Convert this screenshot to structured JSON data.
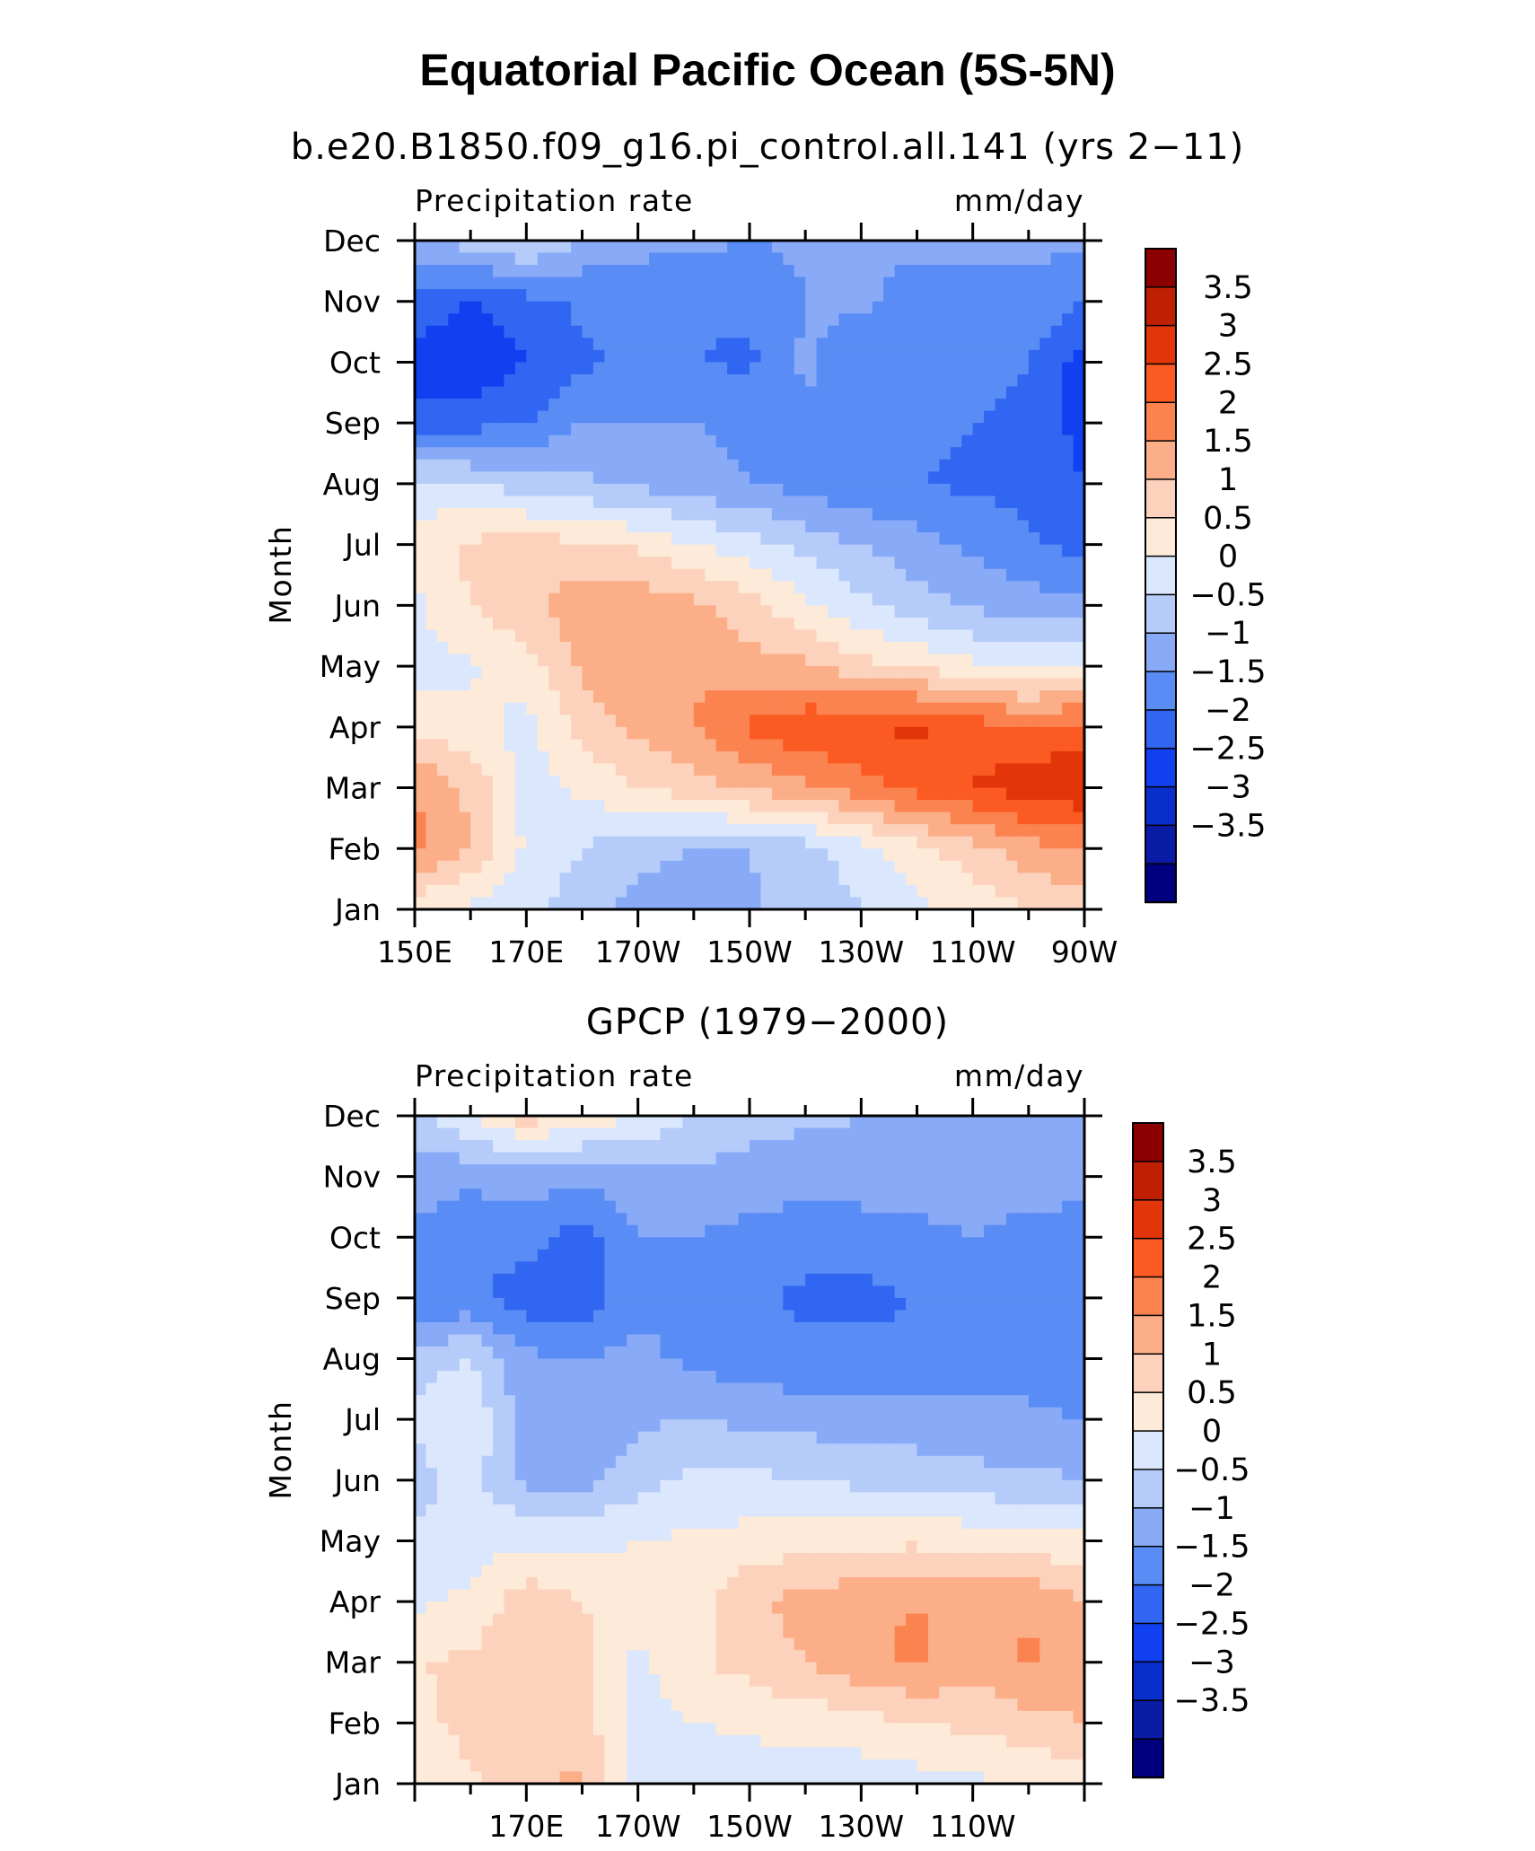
{
  "figure_title": "Equatorial Pacific Ocean (5S-5N)",
  "chart_data": [
    {
      "type": "heatmap",
      "title": "b.e20.B1850.f09_g16.pi_control.all.141 (yrs 2−11)",
      "left_label": "Precipitation rate",
      "right_label": "mm/day",
      "ylabel": "Month",
      "months": [
        "Jan",
        "Feb",
        "Mar",
        "Apr",
        "May",
        "Jun",
        "Jul",
        "Aug",
        "Sep",
        "Oct",
        "Nov",
        "Dec"
      ],
      "x_ticks": [
        "150E",
        "170E",
        "170W",
        "150W",
        "130W",
        "110W",
        "90W"
      ],
      "x_label_lon": [
        150,
        170,
        190,
        210,
        230,
        250,
        270
      ],
      "xlim_lon": [
        150,
        270
      ],
      "colorbar_levels": [
        "3.5",
        "3",
        "2.5",
        "2",
        "1.5",
        "1",
        "0.5",
        "0",
        "−0.5",
        "−1",
        "−1.5",
        "−2",
        "−2.5",
        "−3",
        "−3.5"
      ],
      "lons": [
        150,
        160,
        170,
        180,
        190,
        200,
        210,
        220,
        230,
        240,
        250,
        260,
        270
      ],
      "values": [
        [
          0.6,
          0.4,
          0.2,
          -0.3,
          -0.7,
          -0.8,
          -0.6,
          -0.3,
          0.0,
          0.4,
          0.7,
          1.0,
          1.3
        ],
        [
          2.2,
          1.5,
          0.4,
          0.0,
          -0.3,
          -0.5,
          -0.5,
          -0.2,
          0.3,
          0.8,
          1.3,
          1.8,
          2.0
        ],
        [
          2.0,
          1.4,
          0.3,
          0.6,
          1.0,
          1.3,
          1.6,
          1.9,
          2.3,
          2.7,
          3.0,
          3.3,
          3.5
        ],
        [
          0.8,
          0.7,
          0.3,
          1.2,
          1.6,
          2.0,
          2.6,
          2.9,
          3.0,
          3.1,
          2.8,
          2.5,
          2.7
        ],
        [
          0.3,
          0.4,
          0.8,
          1.6,
          1.9,
          1.9,
          1.7,
          1.6,
          1.2,
          0.9,
          0.6,
          0.4,
          0.6
        ],
        [
          0.4,
          1.0,
          1.4,
          1.8,
          1.8,
          1.6,
          1.2,
          0.6,
          0.1,
          -0.3,
          -0.6,
          -0.8,
          -0.8
        ],
        [
          0.7,
          1.1,
          1.2,
          1.1,
          0.9,
          0.5,
          0.2,
          -0.2,
          -0.5,
          -0.8,
          -1.1,
          -1.4,
          -1.7
        ],
        [
          0.2,
          0.0,
          -0.2,
          -0.4,
          -0.6,
          -0.8,
          -1.0,
          -1.2,
          -1.4,
          -1.5,
          -1.6,
          -1.7,
          -2.0
        ],
        [
          -1.7,
          -1.7,
          -1.5,
          -1.0,
          -1.0,
          -1.0,
          -1.1,
          -1.1,
          -1.3,
          -1.4,
          -1.5,
          -1.6,
          -2.2
        ],
        [
          -2.3,
          -2.4,
          -2.0,
          -1.6,
          -1.4,
          -1.5,
          -1.6,
          -0.9,
          -1.3,
          -1.4,
          -1.4,
          -1.5,
          -2.3
        ],
        [
          -1.6,
          -2.0,
          -1.7,
          -1.4,
          -1.4,
          -1.4,
          -1.4,
          -1.0,
          -0.9,
          -1.2,
          -1.2,
          -1.1,
          -1.5
        ],
        [
          -0.6,
          -0.3,
          0.2,
          -0.6,
          -0.8,
          -0.9,
          -1.0,
          -0.9,
          -0.9,
          -0.9,
          -0.9,
          -0.9,
          -0.9
        ]
      ]
    },
    {
      "type": "heatmap",
      "title": "GPCP (1979−2000)",
      "left_label": "Precipitation rate",
      "right_label": "mm/day",
      "ylabel": "Month",
      "months": [
        "Jan",
        "Feb",
        "Mar",
        "Apr",
        "May",
        "Jun",
        "Jul",
        "Aug",
        "Sep",
        "Oct",
        "Nov",
        "Dec"
      ],
      "x_ticks": [
        "170E",
        "170W",
        "150W",
        "130W",
        "110W"
      ],
      "x_label_lon": [
        170,
        190,
        210,
        230,
        250
      ],
      "xlim_lon": [
        150,
        270
      ],
      "colorbar_levels": [
        "3.5",
        "3",
        "2.5",
        "2",
        "1.5",
        "1",
        "0.5",
        "0",
        "−0.5",
        "−1",
        "−1.5",
        "−2",
        "−2.5",
        "−3",
        "−3.5"
      ],
      "lons": [
        150,
        160,
        170,
        180,
        190,
        200,
        210,
        220,
        230,
        240,
        250,
        260,
        270
      ],
      "values": [
        [
          0.6,
          0.9,
          1.4,
          1.6,
          0.3,
          0.2,
          0.2,
          0.2,
          0.2,
          0.3,
          0.4,
          0.5,
          0.7
        ],
        [
          0.8,
          1.2,
          1.0,
          1.3,
          0.2,
          0.5,
          0.6,
          0.7,
          0.8,
          1.0,
          1.1,
          1.3,
          1.5
        ],
        [
          1.0,
          1.1,
          1.4,
          1.2,
          0.4,
          0.9,
          1.2,
          1.5,
          1.9,
          2.1,
          1.7,
          2.1,
          1.8
        ],
        [
          0.4,
          0.6,
          1.3,
          1.0,
          0.6,
          0.8,
          1.4,
          1.7,
          1.9,
          2.0,
          1.8,
          1.9,
          1.5
        ],
        [
          0.1,
          0.3,
          0.4,
          0.4,
          0.5,
          0.6,
          0.7,
          0.8,
          0.8,
          0.9,
          0.8,
          0.7,
          0.6
        ],
        [
          -0.2,
          0.2,
          -0.6,
          -0.7,
          -0.2,
          0.1,
          0.1,
          0.0,
          -0.1,
          -0.2,
          -0.3,
          -0.4,
          -0.5
        ],
        [
          0.1,
          0.4,
          -0.8,
          -0.8,
          -0.6,
          -0.5,
          -0.6,
          -0.7,
          -0.8,
          -0.8,
          -0.9,
          -0.9,
          -1.0
        ],
        [
          -0.2,
          0.0,
          -0.9,
          -1.0,
          -0.9,
          -1.1,
          -1.3,
          -1.4,
          -1.4,
          -1.4,
          -1.2,
          -1.2,
          -1.4
        ],
        [
          -1.5,
          -1.4,
          -1.8,
          -1.8,
          -1.1,
          -1.0,
          -1.4,
          -1.6,
          -1.6,
          -1.5,
          -1.1,
          -1.2,
          -1.5
        ],
        [
          -1.1,
          -1.3,
          -1.3,
          -1.8,
          -1.0,
          -1.0,
          -1.2,
          -1.3,
          -1.3,
          -1.2,
          -1.0,
          -1.3,
          -1.4
        ],
        [
          -0.8,
          -0.9,
          -0.8,
          -0.8,
          -0.7,
          -0.6,
          -0.7,
          -0.8,
          -0.7,
          -0.7,
          -0.6,
          -0.5,
          -0.7
        ],
        [
          -0.2,
          0.5,
          1.3,
          0.8,
          0.5,
          -0.1,
          -0.3,
          -0.4,
          -0.5,
          -0.5,
          -0.5,
          -0.5,
          -0.5
        ]
      ]
    }
  ],
  "palette": [
    "#00007F",
    "#0A1BA6",
    "#0A2ECC",
    "#1140F0",
    "#3066F2",
    "#5A8CF5",
    "#88AAF7",
    "#B5CBF9",
    "#DAE7FC",
    "#FDEAD9",
    "#FDD2BC",
    "#FCAE88",
    "#FB8350",
    "#FB5A22",
    "#E23509",
    "#BF2004",
    "#8B0000"
  ]
}
